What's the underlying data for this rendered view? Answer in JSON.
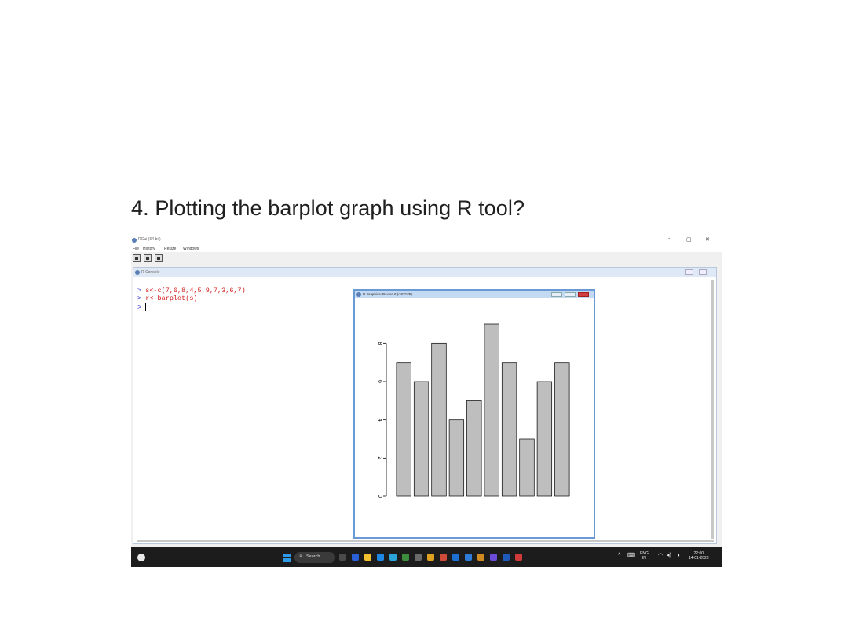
{
  "question": "4. Plotting the barplot graph using R tool?",
  "rgui": {
    "title": "RGui (64-bit)",
    "window_controls": {
      "minimize": "-",
      "maximize": "▢",
      "close": "✕"
    },
    "menu": [
      "File",
      "History",
      "Resize",
      "Windows"
    ],
    "toolbar_icons": [
      "open-script-icon",
      "print-icon",
      "stop-icon"
    ]
  },
  "console": {
    "title": "R Console",
    "lines": [
      {
        "prompt": ">",
        "code": "s<-c(7,6,8,4,5,9,7,3,6,7)"
      },
      {
        "prompt": ">",
        "code": "r<-barplot(s)"
      },
      {
        "prompt": ">",
        "code": ""
      }
    ]
  },
  "graphics_device": {
    "title": "R Graphics: Device 2 (ACTIVE)"
  },
  "chart_data": {
    "type": "bar",
    "values": [
      7,
      6,
      8,
      4,
      5,
      9,
      7,
      3,
      6,
      7
    ],
    "yticks": [
      "0",
      "2",
      "4",
      "6",
      "8"
    ],
    "ylim": [
      0,
      9
    ],
    "bar_color": "#bebebe",
    "grid": false
  },
  "taskbar": {
    "search_label": "Search",
    "language": "ENG",
    "region": "IN",
    "time": "22:00",
    "date": "14-01-2023",
    "app_colors": [
      "#4a4a4a",
      "#2b5fd6",
      "#f2c12e",
      "#1e88e5",
      "#2aa4d8",
      "#3c8d3c",
      "#6a6a6a",
      "#e0a020",
      "#d04a3a",
      "#1d6fd1",
      "#2f7bd8",
      "#d08a20",
      "#6b4bd8",
      "#1e5bb8",
      "#d03a3a"
    ],
    "tray_icons": [
      "chevron-up-icon",
      "keyboard-icon",
      "wifi-icon",
      "speaker-icon",
      "battery-icon"
    ]
  }
}
